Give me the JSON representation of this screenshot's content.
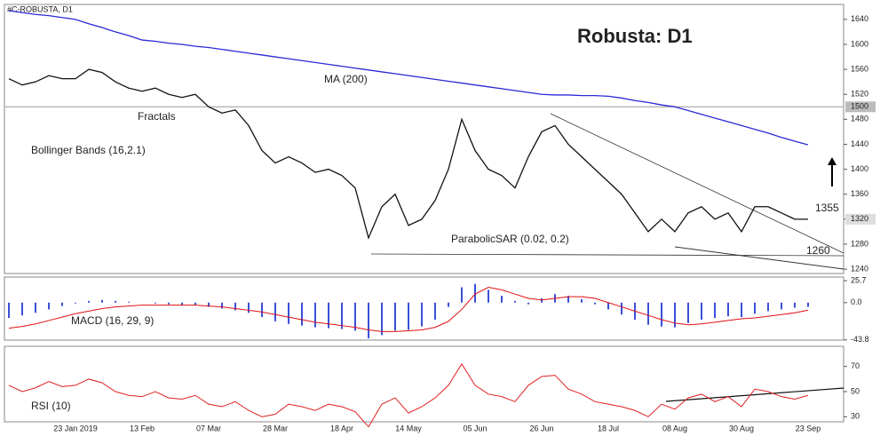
{
  "header": "#C-ROBUSTA, D1",
  "chart_data": [
    {
      "type": "line",
      "categories": [
        null,
        null,
        null,
        null,
        null,
        "23 Jan 2019",
        null,
        null,
        null,
        null,
        "13 Feb",
        null,
        null,
        null,
        null,
        "07 Mar",
        null,
        null,
        null,
        null,
        "28 Mar",
        null,
        null,
        null,
        null,
        "18 Apr",
        null,
        null,
        null,
        null,
        "14 May",
        null,
        null,
        null,
        null,
        "05 Jun",
        null,
        null,
        null,
        null,
        "26 Jun",
        null,
        null,
        null,
        null,
        "18 Jul",
        null,
        null,
        null,
        null,
        "08 Aug",
        null,
        null,
        null,
        null,
        "30 Aug",
        null,
        null,
        null,
        null,
        "23 Sep"
      ],
      "series": [
        {
          "color": "#111111",
          "values": [
            1545,
            1535,
            1540,
            1550,
            1545,
            1545,
            1560,
            1555,
            1540,
            1530,
            1525,
            1530,
            1520,
            1515,
            1520,
            1500,
            1490,
            1495,
            1470,
            1430,
            1410,
            1420,
            1410,
            1395,
            1400,
            1390,
            1370,
            1290,
            1340,
            1360,
            1310,
            1320,
            1350,
            1400,
            1480,
            1430,
            1400,
            1390,
            1370,
            1420,
            1460,
            1470,
            1440,
            1420,
            1400,
            1380,
            1360,
            1330,
            1300,
            1320,
            1300,
            1330,
            1340,
            1320,
            1330,
            1300,
            1340,
            1340,
            1330,
            1320,
            1320
          ]
        },
        {
          "color": "#2a2ad6",
          "values": [
            1654,
            1651,
            1648,
            1646,
            1643,
            1640,
            1633,
            1627,
            1620,
            1614,
            1607,
            1605,
            1602,
            1600,
            1597,
            1595,
            1592,
            1589,
            1586,
            1583,
            1580,
            1577,
            1574,
            1571,
            1568,
            1565,
            1562,
            1559,
            1556,
            1553,
            1550,
            1547,
            1544,
            1541,
            1538,
            1535,
            1532,
            1529,
            1526,
            1523,
            1520,
            1519,
            1519,
            1518,
            1518,
            1517,
            1514,
            1510,
            1507,
            1503,
            1500,
            1494,
            1488,
            1482,
            1476,
            1470,
            1464,
            1458,
            1451,
            1445,
            1439
          ]
        }
      ],
      "ylim": [
        1233,
        1664
      ],
      "yticks": [
        1240,
        1280,
        1320,
        1360,
        1400,
        1440,
        1480,
        1520,
        1560,
        1600,
        1640
      ],
      "hlines": [
        1500
      ],
      "last": 1320,
      "annotations": [
        "Robusta: D1",
        "MA (200)",
        "Fractals",
        "Bollinger Bands (16,2.1)",
        "ParabolicSAR (0.02, 0.2)",
        "1355",
        "1260"
      ]
    },
    {
      "type": "bar",
      "series": [
        {
          "color": "#3b4fd8",
          "values": [
            -18,
            -15,
            -12,
            -8,
            -4,
            -1,
            2,
            3,
            2,
            1,
            0,
            -1,
            -2,
            -3,
            -3,
            -5,
            -7,
            -9,
            -12,
            -17,
            -22,
            -25,
            -27,
            -29,
            -30,
            -31,
            -33,
            -42,
            -38,
            -33,
            -32,
            -28,
            -20,
            -5,
            18,
            22,
            15,
            8,
            2,
            -2,
            5,
            10,
            8,
            4,
            -2,
            -8,
            -14,
            -20,
            -26,
            -28,
            -29,
            -24,
            -20,
            -18,
            -16,
            -17,
            -13,
            -10,
            -8,
            -6,
            -5
          ]
        },
        {
          "type": "line",
          "color": "#e01010",
          "values": [
            -30,
            -28,
            -25,
            -21,
            -17,
            -13,
            -10,
            -7,
            -5,
            -4,
            -3,
            -3,
            -3,
            -3,
            -3,
            -4,
            -5,
            -7,
            -9,
            -11,
            -14,
            -17,
            -20,
            -23,
            -25,
            -27,
            -29,
            -32,
            -34,
            -34,
            -33,
            -32,
            -29,
            -22,
            -8,
            10,
            18,
            15,
            10,
            5,
            3,
            5,
            7,
            7,
            5,
            0,
            -5,
            -10,
            -15,
            -20,
            -24,
            -26,
            -25,
            -23,
            -21,
            -19,
            -18,
            -16,
            -14,
            -12,
            -9
          ]
        }
      ],
      "ylim": [
        -44,
        30
      ],
      "yticks": [
        -43.8,
        {
          "value": 0,
          "label": "0.0"
        },
        25.7
      ],
      "annotations": [
        "MACD (16, 29, 9)"
      ]
    },
    {
      "type": "line",
      "series": [
        {
          "color": "#e02020",
          "values": [
            55,
            50,
            53,
            58,
            54,
            55,
            60,
            57,
            50,
            47,
            46,
            50,
            45,
            44,
            47,
            40,
            38,
            42,
            35,
            30,
            32,
            40,
            38,
            35,
            40,
            38,
            34,
            22,
            40,
            45,
            33,
            38,
            45,
            55,
            72,
            55,
            48,
            46,
            42,
            55,
            62,
            63,
            52,
            48,
            42,
            40,
            38,
            35,
            30,
            40,
            36,
            45,
            48,
            42,
            46,
            38,
            52,
            50,
            46,
            44,
            47
          ]
        }
      ],
      "ylim": [
        26,
        86
      ],
      "yticks": [
        30,
        50,
        70
      ],
      "annotations": [
        "RSI (10)"
      ]
    }
  ]
}
